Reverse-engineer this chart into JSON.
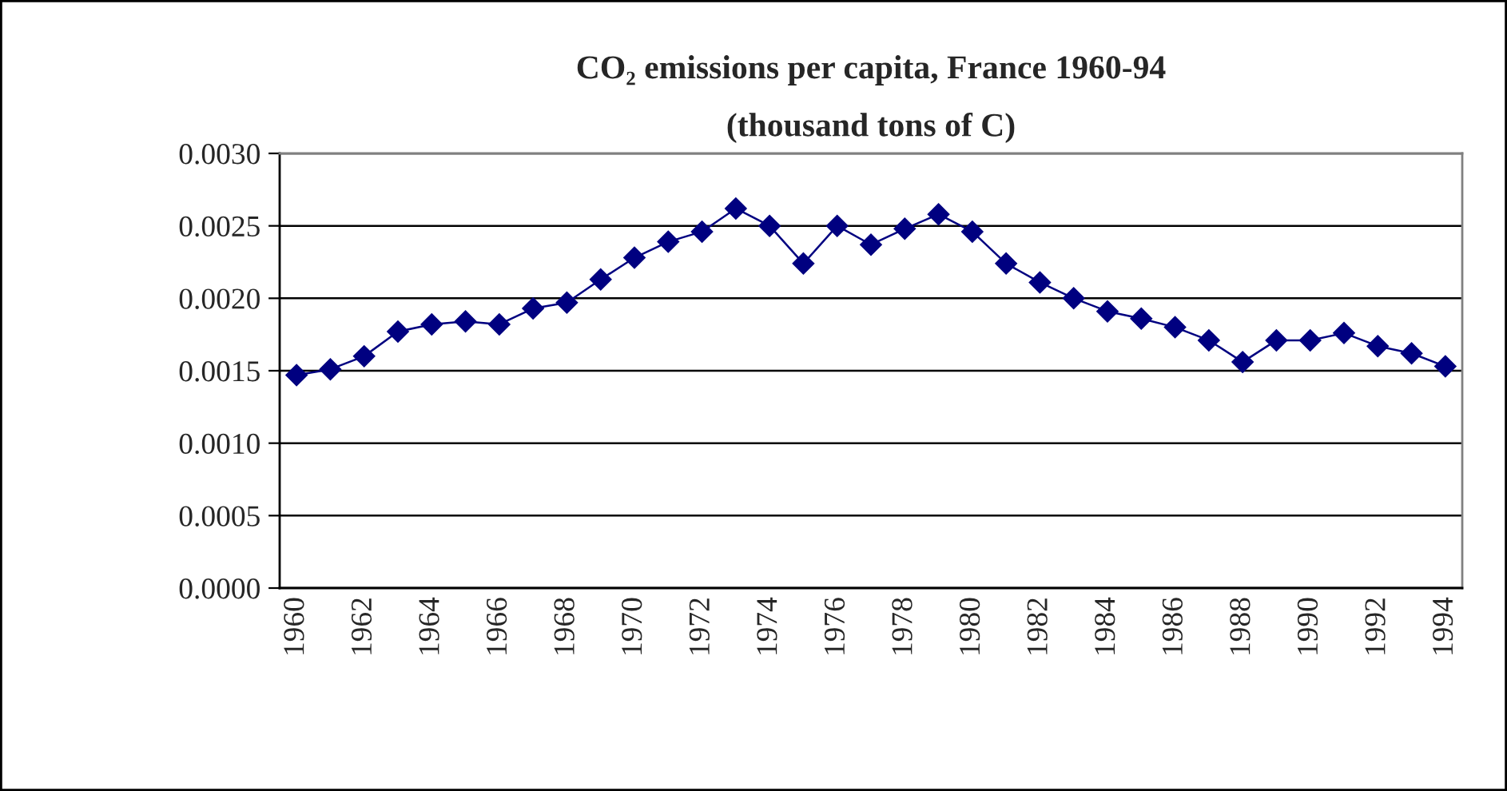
{
  "chart_data": {
    "type": "line",
    "title": "CO₂ emissions per capita, France 1960-94",
    "subtitle": "(thousand tons of C)",
    "categories": [
      "1960",
      null,
      "1962",
      null,
      "1964",
      null,
      "1966",
      null,
      "1968",
      null,
      "1970",
      null,
      "1972",
      null,
      "1974",
      null,
      "1976",
      null,
      "1978",
      null,
      "1980",
      null,
      "1982",
      null,
      "1984",
      null,
      "1986",
      null,
      "1988",
      null,
      "1990",
      null,
      "1992",
      null,
      "1994"
    ],
    "series": [
      {
        "color": "#000080",
        "values": [
          0.00147,
          0.00151,
          0.0016,
          0.00177,
          0.00182,
          0.00184,
          0.00182,
          0.00193,
          0.00197,
          0.00213,
          0.00228,
          0.00239,
          0.00246,
          0.00262,
          0.0025,
          0.00224,
          0.0025,
          0.00237,
          0.00248,
          0.00258,
          0.00246,
          0.00224,
          0.00211,
          0.002,
          0.00191,
          0.00186,
          0.0018,
          0.00171,
          0.00156,
          0.00171,
          0.00171,
          0.00176,
          0.00167,
          0.00162,
          0.00153
        ]
      }
    ],
    "ylim": [
      0,
      0.003
    ],
    "yticks": [
      {
        "value": 0,
        "label": "0.0000"
      },
      {
        "value": 0.0005,
        "label": "0.0005"
      },
      {
        "value": 0.001,
        "label": "0.0010"
      },
      {
        "value": 0.0015,
        "label": "0.0015"
      },
      {
        "value": 0.002,
        "label": "0.0020"
      },
      {
        "value": 0.0025,
        "label": "0.0025"
      },
      {
        "value": 0.003,
        "label": "0.0030"
      }
    ],
    "grid": "y",
    "marker": "diamond",
    "line_style": "solid",
    "legend": false
  }
}
